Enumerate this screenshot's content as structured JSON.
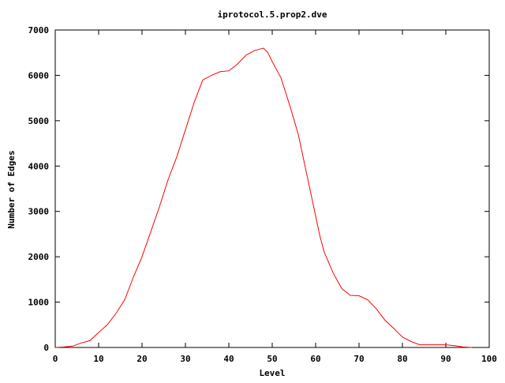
{
  "chart_data": {
    "type": "line",
    "title": "iprotocol.5.prop2.dve",
    "xlabel": "Level",
    "ylabel": "Number of Edges",
    "xlim": [
      0,
      100
    ],
    "ylim": [
      0,
      7000
    ],
    "xticks": [
      0,
      10,
      20,
      30,
      40,
      50,
      60,
      70,
      80,
      90,
      100
    ],
    "yticks": [
      0,
      1000,
      2000,
      3000,
      4000,
      5000,
      6000,
      7000
    ],
    "grid": false,
    "line_color": "#ff0000",
    "series": [
      {
        "x": [
          0,
          2,
          4,
          6,
          8,
          10,
          12,
          14,
          16,
          18,
          20,
          22,
          24,
          26,
          28,
          30,
          32,
          34,
          36,
          38,
          40,
          42,
          44,
          46,
          48,
          49,
          50,
          52,
          54,
          56,
          58,
          60,
          61,
          62,
          64,
          66,
          68,
          70,
          72,
          74,
          76,
          78,
          80,
          82,
          84,
          86,
          88,
          90,
          92,
          94,
          96
        ],
        "y": [
          0,
          10,
          30,
          100,
          150,
          330,
          500,
          750,
          1050,
          1550,
          2000,
          2550,
          3100,
          3700,
          4200,
          4800,
          5400,
          5900,
          6000,
          6080,
          6100,
          6250,
          6450,
          6550,
          6600,
          6500,
          6300,
          5950,
          5350,
          4700,
          3800,
          2900,
          2450,
          2100,
          1650,
          1300,
          1150,
          1140,
          1050,
          850,
          600,
          420,
          230,
          130,
          60,
          60,
          60,
          60,
          40,
          10,
          0
        ]
      }
    ]
  }
}
